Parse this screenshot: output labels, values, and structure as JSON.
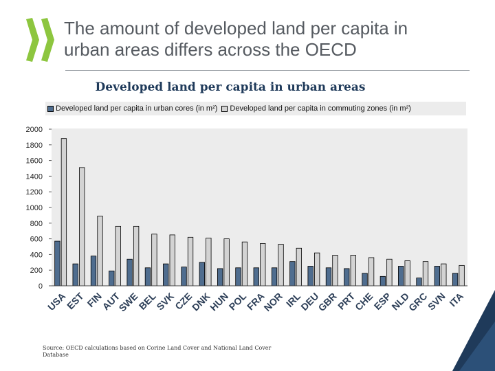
{
  "slide": {
    "title_line1": "The amount of developed land per capita in",
    "title_line2": "urban areas differs across the OECD",
    "source": "Source: OECD calculations based on Corine Land Cover and National Land Cover Database"
  },
  "logo_icon": "oecd-chevrons-icon",
  "colors": {
    "series_cores": "#4f6d8f",
    "series_commuting": "#d3d3d3",
    "logo": "#8dc63f",
    "plot_bg": "#ececec",
    "title_text": "#555a60",
    "chart_title_text": "#1f3a5a",
    "tick_label_text": "#2c3e57"
  },
  "chart_data": {
    "type": "bar",
    "title": "Developed land per capita in urban areas",
    "xlabel": "",
    "ylabel": "",
    "ylim": [
      0,
      2000
    ],
    "yticks": [
      0,
      200,
      400,
      600,
      800,
      1000,
      1200,
      1400,
      1600,
      1800,
      2000
    ],
    "grid": false,
    "legend_position": "top",
    "categories": [
      "USA",
      "EST",
      "FIN",
      "AUT",
      "SWE",
      "BEL",
      "SVK",
      "CZE",
      "DNK",
      "HUN",
      "POL",
      "FRA",
      "NOR",
      "IRL",
      "DEU",
      "GBR",
      "PRT",
      "CHE",
      "ESP",
      "NLD",
      "GRC",
      "SVN",
      "ITA"
    ],
    "series": [
      {
        "name": "Developed land per capita in urban cores (in m²)",
        "values": [
          570,
          280,
          380,
          190,
          340,
          230,
          280,
          240,
          300,
          220,
          230,
          230,
          230,
          310,
          250,
          230,
          220,
          160,
          120,
          250,
          100,
          250,
          160
        ]
      },
      {
        "name": "Developed land per capita in commuting zones (in m²)",
        "values": [
          1880,
          1510,
          890,
          760,
          760,
          660,
          650,
          620,
          610,
          600,
          560,
          540,
          530,
          480,
          420,
          390,
          390,
          360,
          340,
          320,
          310,
          280,
          260
        ]
      }
    ]
  }
}
